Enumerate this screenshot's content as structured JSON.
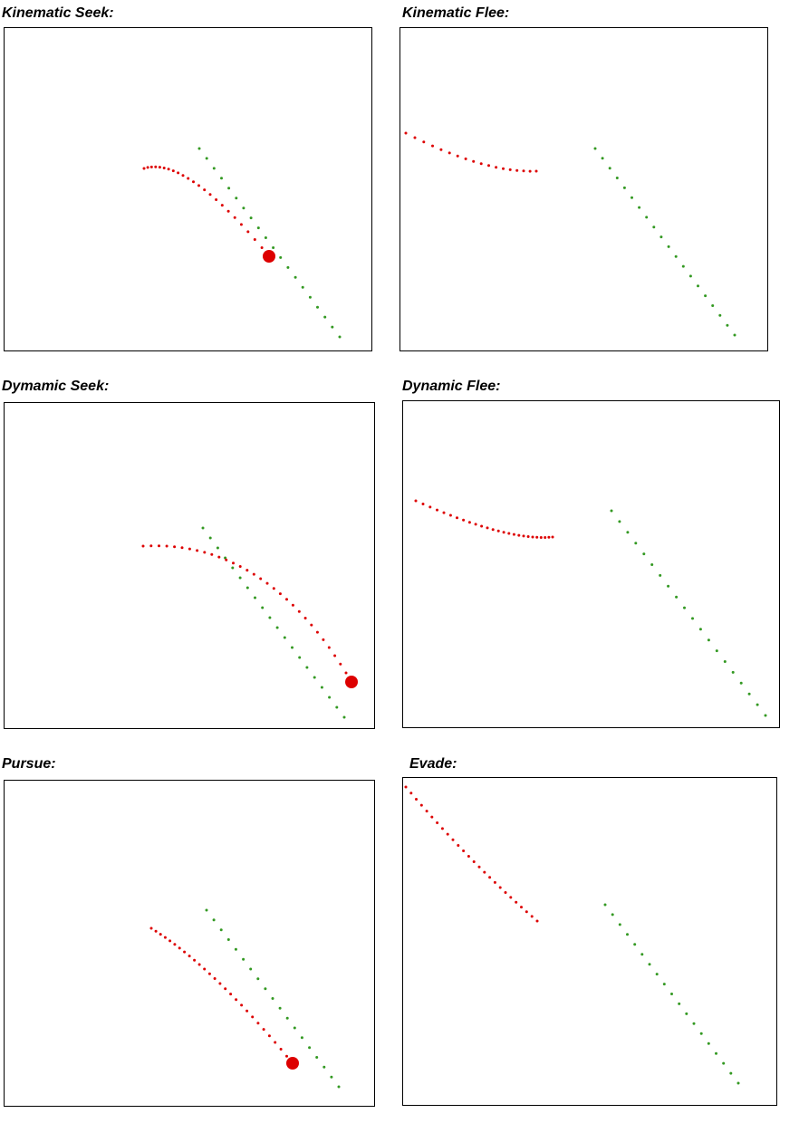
{
  "colors": {
    "agent_path": "#dd0000",
    "target_path": "#339922",
    "frame": "#000000"
  },
  "panels": [
    {
      "title": "Kinematic Seek:",
      "agent_marker": "large-dot-at-end",
      "agent_path_description": "curves from upper-left down toward the target path",
      "target_path_description": "straight diagonal from upper-middle to lower-right"
    },
    {
      "title": "Kinematic Flee:",
      "agent_marker": "none",
      "agent_path_description": "curves leftward away from target, exits frame at left edge",
      "target_path_description": "straight diagonal from upper-middle to lower-right"
    },
    {
      "title": "Dymamic Seek:",
      "agent_marker": "large-dot-at-end",
      "agent_path_description": "arcs across target path and reaches right edge",
      "target_path_description": "straight diagonal from upper-middle to lower-right"
    },
    {
      "title": "Dynamic Flee:",
      "agent_marker": "none",
      "agent_path_description": "curves leftward away from target",
      "target_path_description": "straight diagonal from upper-middle to lower-right"
    },
    {
      "title": "Pursue:",
      "agent_marker": "large-dot-at-end",
      "agent_path_description": "runs parallel to target path, ahead of it",
      "target_path_description": "straight diagonal from upper-middle to lower-right"
    },
    {
      "title": "Evade:",
      "agent_marker": "none",
      "agent_path_description": "moves up-left away from target, exits frame at top-left",
      "target_path_description": "straight diagonal from upper-middle to lower-right"
    }
  ]
}
